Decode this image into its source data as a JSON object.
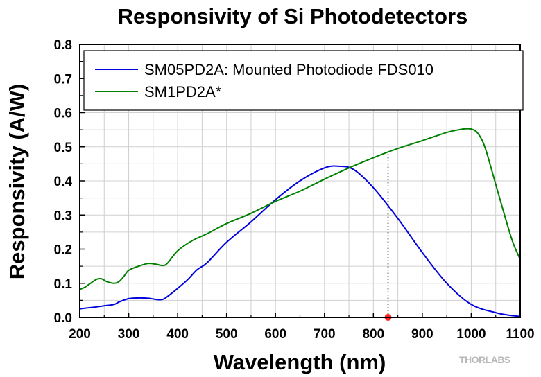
{
  "chart_data": {
    "type": "line",
    "title": "Responsivity of Si Photodetectors",
    "xlabel": "Wavelength (nm)",
    "ylabel": "Responsivity (A/W)",
    "xlim": [
      200,
      1100
    ],
    "ylim": [
      0.0,
      0.8
    ],
    "xticks": [
      200,
      300,
      400,
      500,
      600,
      700,
      800,
      900,
      1000,
      1100
    ],
    "yticks": [
      "0.0",
      "0.1",
      "0.2",
      "0.3",
      "0.4",
      "0.5",
      "0.6",
      "0.7",
      "0.8"
    ],
    "grid": true,
    "legend_position": "top",
    "series": [
      {
        "name": "SM05PD2A: Mounted Photodiode FDS010",
        "color": "#0000dd",
        "x": [
          200,
          210,
          230,
          250,
          270,
          280,
          300,
          320,
          340,
          360,
          370,
          380,
          400,
          420,
          440,
          460,
          500,
          550,
          600,
          650,
          700,
          730,
          760,
          800,
          850,
          900,
          950,
          1000,
          1050,
          1080,
          1100
        ],
        "y": [
          0.025,
          0.027,
          0.03,
          0.034,
          0.038,
          0.045,
          0.055,
          0.057,
          0.056,
          0.052,
          0.053,
          0.062,
          0.085,
          0.11,
          0.14,
          0.16,
          0.22,
          0.28,
          0.345,
          0.4,
          0.438,
          0.443,
          0.433,
          0.38,
          0.29,
          0.19,
          0.1,
          0.038,
          0.014,
          0.006,
          0.003
        ]
      },
      {
        "name": "SM1PD2A*",
        "color": "#008000",
        "x": [
          200,
          210,
          220,
          235,
          245,
          255,
          270,
          280,
          290,
          300,
          320,
          340,
          355,
          370,
          380,
          400,
          430,
          460,
          500,
          550,
          600,
          650,
          700,
          750,
          800,
          850,
          900,
          950,
          975,
          990,
          1000,
          1010,
          1020,
          1030,
          1050,
          1070,
          1085,
          1100
        ],
        "y": [
          0.082,
          0.088,
          0.098,
          0.112,
          0.113,
          0.105,
          0.1,
          0.105,
          0.12,
          0.138,
          0.15,
          0.158,
          0.156,
          0.152,
          0.16,
          0.195,
          0.225,
          0.245,
          0.275,
          0.305,
          0.34,
          0.37,
          0.405,
          0.438,
          0.468,
          0.495,
          0.518,
          0.542,
          0.55,
          0.553,
          0.552,
          0.545,
          0.525,
          0.49,
          0.39,
          0.29,
          0.22,
          0.17
        ]
      }
    ],
    "marker": {
      "x": 830,
      "y": 0.0,
      "color": "#ff2222",
      "line_to_series": "SM1PD2A*"
    }
  },
  "legend": {
    "items": [
      {
        "label": "SM05PD2A: Mounted Photodiode FDS010",
        "color": "#0000dd"
      },
      {
        "label": "SM1PD2A*",
        "color": "#008000"
      }
    ]
  },
  "logo": {
    "text": "THORLABS"
  }
}
